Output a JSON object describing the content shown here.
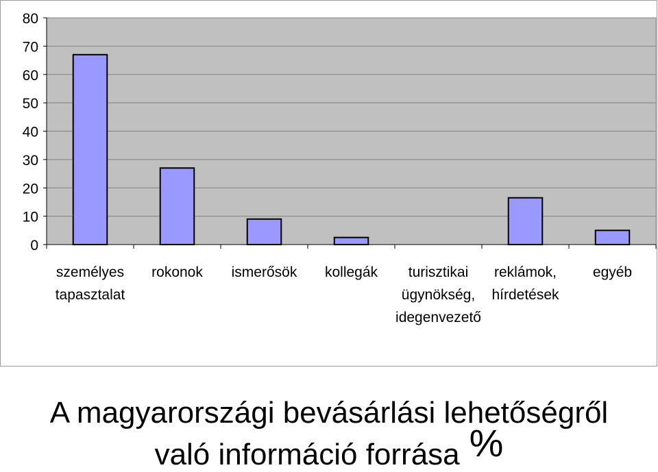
{
  "chart_data": {
    "type": "bar",
    "title_line1": "A magyarországi bevásárlási lehetőségről",
    "title_line2": "való információ forrása",
    "title_unit": "%",
    "categories": [
      [
        "személyes",
        "tapasztalat"
      ],
      [
        "rokonok"
      ],
      [
        "ismerősök"
      ],
      [
        "kollegák"
      ],
      [
        "turisztikai",
        "ügynökség,",
        "idegenvezető"
      ],
      [
        "reklámok,",
        "hírdetések"
      ],
      [
        "egyéb"
      ]
    ],
    "values": [
      67,
      27,
      9,
      2.5,
      0,
      16.5,
      5
    ],
    "ylim": [
      0,
      80
    ],
    "yticks": [
      "0",
      "10",
      "20",
      "30",
      "40",
      "50",
      "60",
      "70",
      "80"
    ],
    "grid": true,
    "legend": "none",
    "colors": {
      "bar": "#9999ff",
      "plot_bg": "#c0c0c0",
      "grid": "#808080",
      "axis": "#000000"
    }
  }
}
